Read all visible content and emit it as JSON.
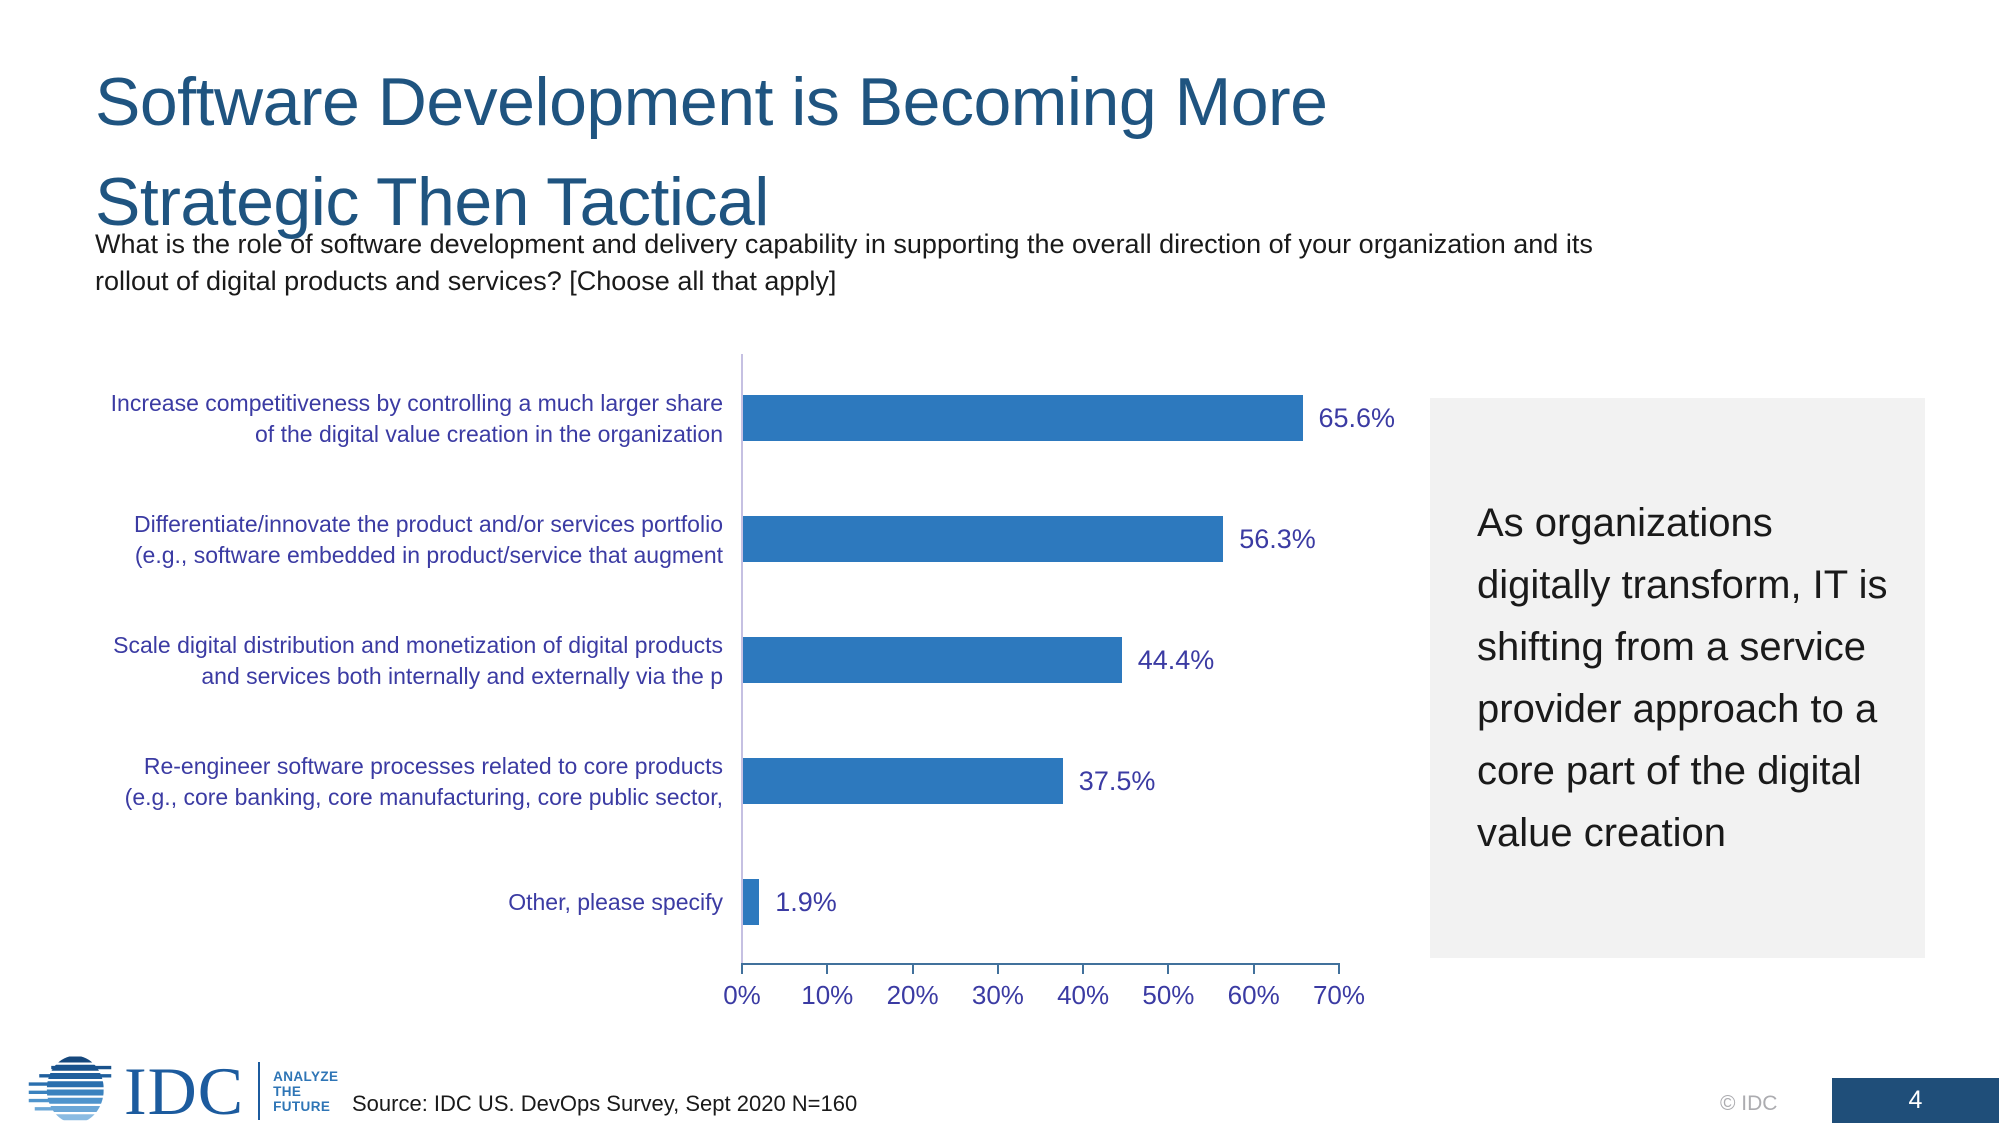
{
  "slide": {
    "title_lines": [
      "Software Development is Becoming More",
      "Strategic Then Tactical"
    ],
    "subtitle_lines": [
      "What is the role of software development and delivery capability in supporting the overall direction of your organization and its",
      "rollout of digital products and services? [Choose all that apply]"
    ],
    "callout_text": "As organizations digitally transform, IT is shifting from a service provider approach to a core part of the digital value creation",
    "source": "Source: IDC US. DevOps Survey, Sept 2020 N=160",
    "copyright": "© IDC",
    "page_number": "4",
    "logo": {
      "icon": "idc-globe-icon",
      "word": "IDC",
      "tagline_lines": [
        "ANALYZE",
        "THE",
        "FUTURE"
      ]
    }
  },
  "colors": {
    "title_blue": "#1F5480",
    "bar_blue": "#2D79BE",
    "chart_label_indigo": "#3B3BA3",
    "axis_steel_blue": "#41719C",
    "axis_vertical_lavender": "#C5C0E2",
    "callout_bg_gray": "#F2F2F2",
    "page_box_navy": "#1F4E79",
    "logo_navy": "#1C5B9E",
    "tagline_blue": "#2E75B6",
    "body_text": "#1A1A1A",
    "muted_gray": "#ACACB0"
  },
  "chart_data": {
    "type": "bar",
    "orientation": "horizontal",
    "categories": [
      "Increase competitiveness by controlling a much larger share of the digital value creation in the organization",
      "Differentiate/innovate the product and/or services portfolio (e.g., software embedded in product/service that augment",
      "Scale digital distribution and monetization of digital products and services both internally and externally via the p",
      "Re-engineer software processes related to core products (e.g., core banking, core manufacturing, core public sector,",
      "Other, please specify"
    ],
    "values": [
      65.6,
      56.3,
      44.4,
      37.5,
      1.9
    ],
    "value_labels": [
      "65.6%",
      "56.3%",
      "44.4%",
      "37.5%",
      "1.9%"
    ],
    "title": "",
    "xlabel": "",
    "ylabel": "",
    "x_ticks": [
      "0%",
      "10%",
      "20%",
      "30%",
      "40%",
      "50%",
      "60%",
      "70%"
    ],
    "xlim": [
      0,
      70
    ],
    "grid": false,
    "legend": false,
    "data_labels": true
  }
}
